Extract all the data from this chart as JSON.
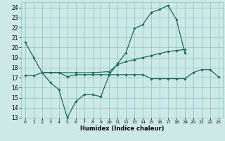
{
  "xlabel": "Humidex (Indice chaleur)",
  "xlim": [
    -0.5,
    23.5
  ],
  "ylim": [
    13,
    24.5
  ],
  "yticks": [
    13,
    14,
    15,
    16,
    17,
    18,
    19,
    20,
    21,
    22,
    23,
    24
  ],
  "xticks": [
    0,
    1,
    2,
    3,
    4,
    5,
    6,
    7,
    8,
    9,
    10,
    11,
    12,
    13,
    14,
    15,
    16,
    17,
    18,
    19,
    20,
    21,
    22,
    23
  ],
  "bg_color": "#cce9e8",
  "grid_color": "#88c4c0",
  "line_color": "#1a6b5a",
  "line1_x": [
    0,
    1,
    2,
    3,
    4,
    5,
    6,
    7,
    8,
    9,
    10,
    11,
    12,
    13,
    14,
    15,
    16,
    17,
    18,
    19
  ],
  "line1_y": [
    20.5,
    19.0,
    17.5,
    16.5,
    15.8,
    13.0,
    14.6,
    15.3,
    15.3,
    15.1,
    17.3,
    18.4,
    19.5,
    21.9,
    22.3,
    23.5,
    23.8,
    24.2,
    22.8,
    19.5
  ],
  "line2_x": [
    2,
    6,
    8,
    10,
    11,
    12,
    13,
    14,
    15,
    16,
    17,
    18,
    19
  ],
  "line2_y": [
    17.5,
    17.5,
    17.5,
    17.6,
    18.3,
    18.6,
    18.8,
    19.0,
    19.2,
    19.4,
    19.6,
    19.7,
    19.8
  ],
  "line3_x": [
    0,
    1,
    2,
    3,
    4,
    5,
    6,
    7,
    8,
    9,
    10,
    11,
    12,
    13,
    14,
    15,
    16,
    17,
    18,
    19,
    20,
    21,
    22,
    23
  ],
  "line3_y": [
    17.2,
    17.2,
    17.5,
    17.5,
    17.5,
    17.1,
    17.3,
    17.3,
    17.3,
    17.3,
    17.3,
    17.3,
    17.3,
    17.3,
    17.3,
    16.9,
    16.9,
    16.9,
    16.9,
    16.9,
    17.5,
    17.8,
    17.8,
    17.1
  ]
}
